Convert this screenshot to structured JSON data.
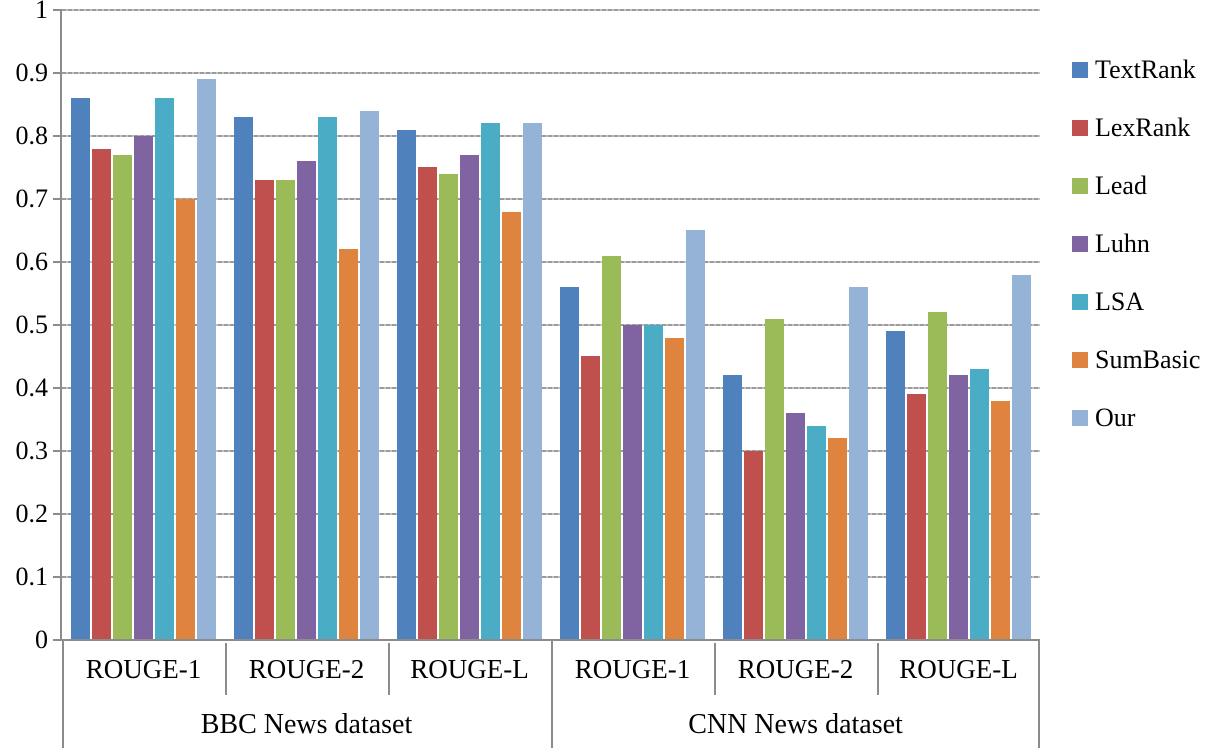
{
  "chart_data": {
    "type": "bar",
    "title": "",
    "xlabel": "",
    "ylabel": "",
    "ylim": [
      0,
      1
    ],
    "grid": true,
    "legend_position": "right",
    "y_tick_labels": [
      "1",
      "0.9",
      "0.8",
      "0.7",
      "0.6",
      "0.5",
      "0.4",
      "0.3",
      "0.2",
      "0.1",
      "0"
    ],
    "group_labels": [
      "ROUGE-1",
      "ROUGE-2",
      "ROUGE-L",
      "ROUGE-1",
      "ROUGE-2",
      "ROUGE-L"
    ],
    "dataset_labels": [
      {
        "label": "BBC News dataset",
        "groups": [
          0,
          3
        ]
      },
      {
        "label": "CNN News dataset",
        "groups": [
          3,
          6
        ]
      }
    ],
    "series": [
      {
        "name": "TextRank",
        "color": "#4F81BD",
        "values": [
          0.86,
          0.83,
          0.81,
          0.56,
          0.42,
          0.49
        ]
      },
      {
        "name": "LexRank",
        "color": "#C0504D",
        "values": [
          0.78,
          0.73,
          0.75,
          0.45,
          0.3,
          0.39
        ]
      },
      {
        "name": "Lead",
        "color": "#9BBB59",
        "values": [
          0.77,
          0.73,
          0.74,
          0.61,
          0.51,
          0.52
        ]
      },
      {
        "name": "Luhn",
        "color": "#8064A2",
        "values": [
          0.8,
          0.76,
          0.77,
          0.5,
          0.36,
          0.42
        ]
      },
      {
        "name": "LSA",
        "color": "#4BACC6",
        "values": [
          0.86,
          0.83,
          0.82,
          0.5,
          0.34,
          0.43
        ]
      },
      {
        "name": "SumBasic",
        "color": "#DF843E",
        "values": [
          0.7,
          0.62,
          0.68,
          0.48,
          0.32,
          0.38
        ]
      },
      {
        "name": "Our",
        "color": "#95B3D7",
        "values": [
          0.89,
          0.84,
          0.82,
          0.65,
          0.56,
          0.58
        ]
      }
    ]
  },
  "colors": {
    "grid": "#9b9b9b",
    "axis": "#8c8c8c",
    "text": "#000000",
    "background": "#ffffff"
  }
}
